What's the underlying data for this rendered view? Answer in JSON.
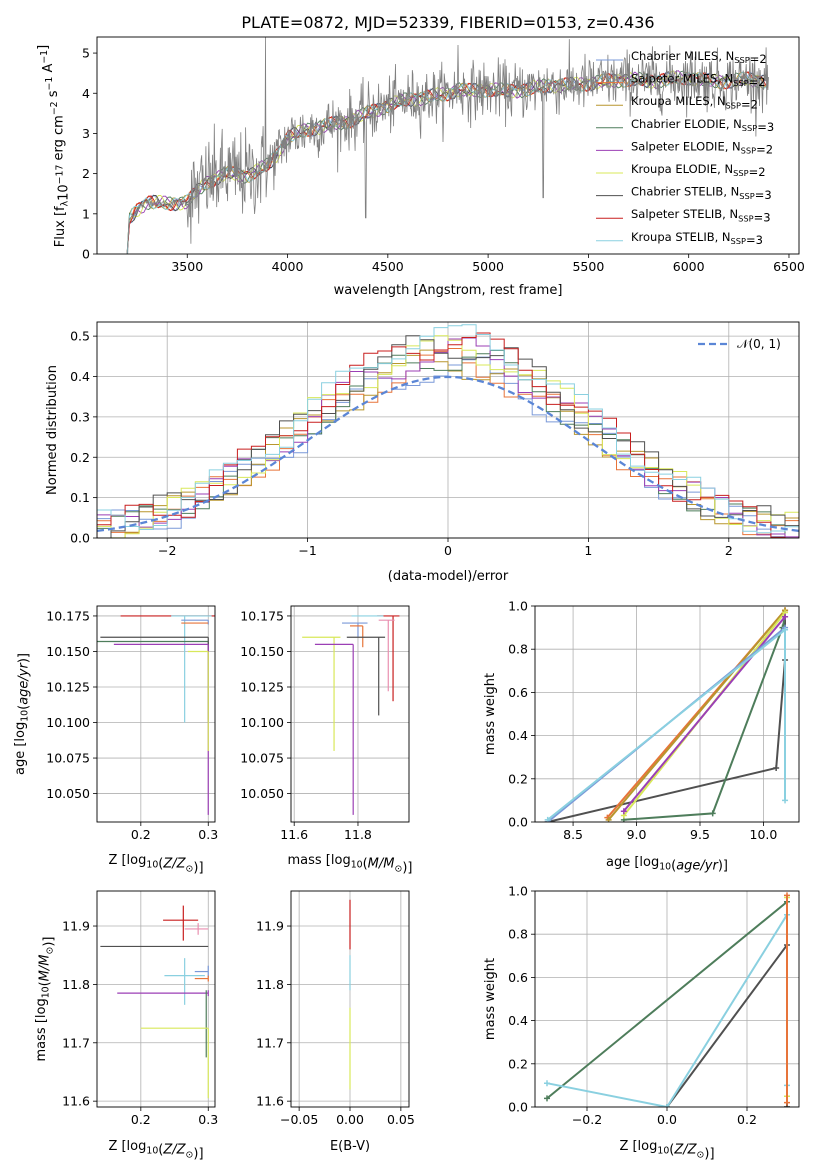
{
  "title": "PLATE=0872, MJD=52339, FIBERID=0153, z=0.436",
  "colors": {
    "Chabrier MILES": "#7a99d8",
    "Salpeter MILES": "#e7743a",
    "Kroupa MILES": "#b8962e",
    "Chabrier ELODIE": "#4e7d5b",
    "Salpeter ELODIE": "#9b3fb5",
    "Kroupa ELODIE": "#d8e85a",
    "Chabrier STELIB": "#505050",
    "Salpeter STELIB": "#c81e1e",
    "Kroupa STELIB": "#8ad0e0",
    "pink": "#e98fb0",
    "data": "#808080",
    "gauss": "#5b86d6"
  },
  "legend": {
    "spectrum": [
      {
        "text": "Chabrier MILES, N",
        "sub": "SSP",
        "tail": "=2",
        "key": "Chabrier MILES"
      },
      {
        "text": "Salpeter MILES, N",
        "sub": "SSP",
        "tail": "=2",
        "key": "Salpeter MILES"
      },
      {
        "text": "Kroupa MILES, N",
        "sub": "SSP",
        "tail": "=2",
        "key": "Kroupa MILES"
      },
      {
        "text": "Chabrier ELODIE, N",
        "sub": "SSP",
        "tail": "=3",
        "key": "Chabrier ELODIE"
      },
      {
        "text": "Salpeter ELODIE, N",
        "sub": "SSP",
        "tail": "=2",
        "key": "Salpeter ELODIE"
      },
      {
        "text": "Kroupa ELODIE, N",
        "sub": "SSP",
        "tail": "=2",
        "key": "Kroupa ELODIE"
      },
      {
        "text": "Chabrier STELIB, N",
        "sub": "SSP",
        "tail": "=3",
        "key": "Chabrier STELIB"
      },
      {
        "text": "Salpeter STELIB, N",
        "sub": "SSP",
        "tail": "=3",
        "key": "Salpeter STELIB"
      },
      {
        "text": "Kroupa STELIB, N",
        "sub": "SSP",
        "tail": "=3",
        "key": "Kroupa STELIB"
      }
    ],
    "hist": "𝒩(0, 1)"
  },
  "chart_data": [
    {
      "type": "line",
      "id": "spectrum",
      "xlabel": "wavelength [Angstrom, rest frame]",
      "ylabel": "Flux [f_λ 10^-17 erg cm^-2 s^-1 A^-1]",
      "xlim": [
        3050,
        6550
      ],
      "ylim": [
        0,
        5.4
      ],
      "xticks": [
        3500,
        4000,
        4500,
        5000,
        5500,
        6000,
        6500
      ],
      "yticks": [
        0,
        1,
        2,
        3,
        4,
        5
      ],
      "continuum": {
        "x": [
          3200,
          3210,
          3250,
          3300,
          3400,
          3500,
          3550,
          3600,
          3700,
          3800,
          3900,
          3950,
          4000,
          4100,
          4200,
          4300,
          4400,
          4500,
          4600,
          4700,
          4800,
          4850,
          4900,
          5000,
          5100,
          5200,
          5300,
          5400,
          5500,
          5600,
          5700,
          5800,
          5900,
          6000,
          6100,
          6200,
          6300,
          6400
        ],
        "y": [
          0,
          0.85,
          1.1,
          1.3,
          1.25,
          1.3,
          1.55,
          1.8,
          2.0,
          1.95,
          2.2,
          2.5,
          2.9,
          3.1,
          3.2,
          3.3,
          3.5,
          3.7,
          3.85,
          3.9,
          4.0,
          4.1,
          4.05,
          4.1,
          4.05,
          4.1,
          4.2,
          4.2,
          4.25,
          4.3,
          4.35,
          4.3,
          4.35,
          4.4,
          4.3,
          4.3,
          4.35,
          4.3
        ]
      }
    },
    {
      "type": "step",
      "id": "residuals",
      "xlabel": "(data-model)/error",
      "ylabel": "Normed distribution",
      "xlim": [
        -2.5,
        2.5
      ],
      "ylim": [
        0,
        0.535
      ],
      "xticks": [
        -2,
        -1,
        0,
        1,
        2
      ],
      "yticks": [
        0.0,
        0.1,
        0.2,
        0.3,
        0.4,
        0.5
      ],
      "gaussian": {
        "mean": 0,
        "sigma": 1
      }
    },
    {
      "type": "errorbar",
      "id": "age_vs_Z",
      "xlabel": "Z [log10(Z/Z⊙)]",
      "ylabel": "age [log10(age/yr)]",
      "xlim": [
        0.135,
        0.31
      ],
      "ylim": [
        10.03,
        10.182
      ],
      "xticks": [
        0.2,
        0.3
      ],
      "yticks": [
        10.05,
        10.075,
        10.1,
        10.125,
        10.15,
        10.175
      ],
      "points": [
        {
          "key": "Salpeter STELIB",
          "x": 0.25,
          "y": 10.175,
          "xerr": [
            0.08,
            0.06
          ],
          "yerr": [
            0,
            0
          ]
        },
        {
          "key": "Kroupa STELIB",
          "x": 0.265,
          "y": 10.175,
          "xerr": [
            0.02,
            0.04
          ],
          "yerr": [
            0.075,
            0
          ]
        },
        {
          "key": "Chabrier MILES",
          "x": 0.3,
          "y": 10.172,
          "xerr": [
            0.04,
            0
          ],
          "yerr": [
            0.003,
            0
          ]
        },
        {
          "key": "Salpeter MILES",
          "x": 0.3,
          "y": 10.17,
          "xerr": [
            0.04,
            0
          ],
          "yerr": [
            0,
            0
          ]
        },
        {
          "key": "Chabrier ELODIE",
          "x": 0.3,
          "y": 10.157,
          "xerr": [
            0.18,
            0
          ],
          "yerr": [
            0.055,
            0
          ]
        },
        {
          "key": "Chabrier STELIB",
          "x": 0.3,
          "y": 10.16,
          "xerr": [
            0.16,
            0
          ],
          "yerr": [
            0.06,
            0
          ]
        },
        {
          "key": "Salpeter ELODIE",
          "x": 0.3,
          "y": 10.155,
          "xerr": [
            0.14,
            0
          ],
          "yerr": [
            0.12,
            0
          ]
        },
        {
          "key": "Kroupa ELODIE",
          "x": 0.3,
          "y": 10.15,
          "xerr": [
            0.03,
            0
          ],
          "yerr": [
            0.07,
            0
          ]
        }
      ]
    },
    {
      "type": "errorbar",
      "id": "age_vs_mass",
      "xlabel": "mass [log10(M/M⊙)]",
      "ylabel": "",
      "xlim": [
        11.59,
        11.96
      ],
      "ylim": [
        10.03,
        10.182
      ],
      "xticks": [
        11.6,
        11.8
      ],
      "yticks": [
        10.05,
        10.075,
        10.1,
        10.125,
        10.15,
        10.175
      ],
      "points": [
        {
          "key": "Salpeter STELIB",
          "x": 11.91,
          "y": 10.175,
          "xerr": [
            0.05,
            0.02
          ],
          "yerr": [
            0.06,
            0
          ]
        },
        {
          "key": "Kroupa STELIB",
          "x": 11.84,
          "y": 10.175,
          "xerr": [
            0.06,
            0.04
          ],
          "yerr": [
            0,
            0
          ]
        },
        {
          "key": "pink",
          "x": 11.895,
          "y": 10.172,
          "xerr": [
            0.03,
            0.02
          ],
          "yerr": [
            0.05,
            0
          ]
        },
        {
          "key": "Chabrier MILES",
          "x": 11.8,
          "y": 10.17,
          "xerr": [
            0.05,
            0.03
          ],
          "yerr": [
            0.01,
            0
          ]
        },
        {
          "key": "Salpeter MILES",
          "x": 11.815,
          "y": 10.168,
          "xerr": [
            0.04,
            0
          ],
          "yerr": [
            0.015,
            0
          ]
        },
        {
          "key": "Kroupa ELODIE",
          "x": 11.725,
          "y": 10.16,
          "xerr": [
            0.1,
            0.02
          ],
          "yerr": [
            0.08,
            0
          ]
        },
        {
          "key": "Chabrier STELIB",
          "x": 11.865,
          "y": 10.16,
          "xerr": [
            0.1,
            0.02
          ],
          "yerr": [
            0.055,
            0
          ]
        },
        {
          "key": "Salpeter ELODIE",
          "x": 11.785,
          "y": 10.155,
          "xerr": [
            0.12,
            0
          ],
          "yerr": [
            0.12,
            0
          ]
        }
      ]
    },
    {
      "type": "line",
      "id": "mw_vs_age",
      "xlabel": "age  [log10(age/yr)]",
      "ylabel": "mass weight",
      "xlim": [
        8.2,
        10.28
      ],
      "ylim": [
        0,
        1.0
      ],
      "xticks": [
        8.5,
        9.0,
        9.5,
        10.0
      ],
      "yticks": [
        0.0,
        0.2,
        0.4,
        0.6,
        0.8,
        1.0
      ],
      "series": [
        {
          "key": "Chabrier STELIB",
          "x": [
            8.3,
            10.1,
            10.17,
            10.17
          ],
          "y": [
            0.0,
            0.25,
            0.75,
            0.98
          ]
        },
        {
          "key": "Chabrier ELODIE",
          "x": [
            8.9,
            9.6,
            10.15,
            10.17
          ],
          "y": [
            0.01,
            0.04,
            0.9,
            0.95
          ]
        },
        {
          "key": "Salpeter MILES",
          "x": [
            8.77,
            10.17
          ],
          "y": [
            0.02,
            0.98
          ]
        },
        {
          "key": "Kroupa MILES",
          "x": [
            8.78,
            10.17
          ],
          "y": [
            0.01,
            0.98
          ]
        },
        {
          "key": "Kroupa ELODIE",
          "x": [
            8.9,
            10.17
          ],
          "y": [
            0.03,
            0.97
          ]
        },
        {
          "key": "Salpeter ELODIE",
          "x": [
            8.9,
            10.17
          ],
          "y": [
            0.05,
            0.95
          ]
        },
        {
          "key": "Chabrier MILES",
          "x": [
            8.3,
            10.17
          ],
          "y": [
            0.0,
            0.9
          ]
        },
        {
          "key": "Kroupa STELIB",
          "x": [
            8.3,
            10.17,
            10.17
          ],
          "y": [
            0.01,
            0.89,
            0.1
          ]
        }
      ]
    },
    {
      "type": "errorbar",
      "id": "mass_vs_Z",
      "xlabel": "Z [log10(Z/Z⊙)]",
      "ylabel": "mass [log10(M/M⊙)]",
      "xlim": [
        0.135,
        0.31
      ],
      "ylim": [
        11.59,
        11.96
      ],
      "xticks": [
        0.2,
        0.3
      ],
      "yticks": [
        11.6,
        11.7,
        11.8,
        11.9
      ],
      "points": [
        {
          "key": "Salpeter STELIB",
          "x": 0.263,
          "y": 11.91,
          "xerr": [
            0.03,
            0.022
          ],
          "yerr": [
            0.035,
            0.025
          ]
        },
        {
          "key": "pink",
          "x": 0.285,
          "y": 11.895,
          "xerr": [
            0.02,
            0.015
          ],
          "yerr": [
            0.01,
            0.01
          ]
        },
        {
          "key": "Chabrier STELIB",
          "x": 0.3,
          "y": 11.865,
          "xerr": [
            0.16,
            0
          ],
          "yerr": [
            0,
            0
          ]
        },
        {
          "key": "Chabrier MILES",
          "x": 0.3,
          "y": 11.822,
          "xerr": [
            0.02,
            0
          ],
          "yerr": [
            0.01,
            0.01
          ]
        },
        {
          "key": "Kroupa STELIB",
          "x": 0.265,
          "y": 11.815,
          "xerr": [
            0.03,
            0.03
          ],
          "yerr": [
            0.05,
            0.03
          ]
        },
        {
          "key": "Salpeter MILES",
          "x": 0.3,
          "y": 11.81,
          "xerr": [
            0.02,
            0
          ],
          "yerr": [
            0.005,
            0.005
          ]
        },
        {
          "key": "Salpeter ELODIE",
          "x": 0.3,
          "y": 11.785,
          "xerr": [
            0.135,
            0
          ],
          "yerr": [
            0.005,
            0.005
          ]
        },
        {
          "key": "Chabrier ELODIE",
          "x": 0.297,
          "y": 11.79,
          "xerr": [
            0.0,
            0.0
          ],
          "yerr": [
            0.115,
            0
          ]
        },
        {
          "key": "Kroupa ELODIE",
          "x": 0.3,
          "y": 11.725,
          "xerr": [
            0.1,
            0
          ],
          "yerr": [
            0.12,
            0
          ]
        }
      ]
    },
    {
      "type": "errorbar",
      "id": "mass_vs_ebv",
      "xlabel": "E(B-V)",
      "ylabel": "",
      "xlim": [
        -0.058,
        0.058
      ],
      "ylim": [
        11.59,
        11.96
      ],
      "xticks": [
        -0.05,
        0.0,
        0.05
      ],
      "yticks": [
        11.6,
        11.7,
        11.8,
        11.9
      ],
      "points": [
        {
          "key": "Salpeter STELIB",
          "x": 0,
          "y": 11.91,
          "xerr": [
            0,
            0
          ],
          "yerr": [
            0.05,
            0.035
          ]
        },
        {
          "key": "Kroupa STELIB",
          "x": 0,
          "y": 11.82,
          "xerr": [
            0,
            0
          ],
          "yerr": [
            0.03,
            0.03
          ]
        },
        {
          "key": "Kroupa ELODIE",
          "x": 0,
          "y": 11.72,
          "xerr": [
            0,
            0
          ],
          "yerr": [
            0.1,
            0.04
          ]
        }
      ]
    },
    {
      "type": "line",
      "id": "mw_vs_Z",
      "xlabel": "Z [log10(Z/Z⊙)]",
      "ylabel": "mass weight",
      "xlim": [
        -0.33,
        0.33
      ],
      "ylim": [
        0,
        1.0
      ],
      "xticks": [
        -0.2,
        0.0,
        0.2
      ],
      "yticks": [
        0.0,
        0.2,
        0.4,
        0.6,
        0.8,
        1.0
      ],
      "series": [
        {
          "key": "Chabrier ELODIE",
          "x": [
            -0.3,
            0.3,
            0.3
          ],
          "y": [
            0.04,
            0.95,
            0.0
          ]
        },
        {
          "key": "Chabrier STELIB",
          "x": [
            0.0,
            0.3,
            0.3
          ],
          "y": [
            0.0,
            0.75,
            0.0
          ]
        },
        {
          "key": "Kroupa STELIB",
          "x": [
            -0.3,
            0.0,
            0.3,
            0.3
          ],
          "y": [
            0.11,
            0.0,
            0.89,
            0.1
          ]
        },
        {
          "key": "Kroupa ELODIE",
          "x": [
            0.3,
            0.3
          ],
          "y": [
            0.05,
            0.97
          ]
        },
        {
          "key": "Salpeter MILES",
          "x": [
            0.3,
            0.3
          ],
          "y": [
            0.02,
            0.98
          ]
        }
      ]
    }
  ]
}
